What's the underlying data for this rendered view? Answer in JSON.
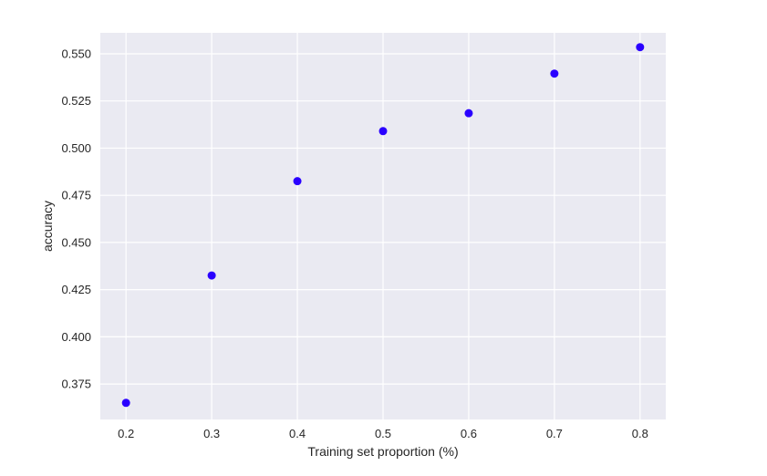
{
  "chart_data": {
    "type": "scatter",
    "title": "",
    "xlabel": "Training set proportion (%)",
    "ylabel": "accuracy",
    "x": [
      0.2,
      0.3,
      0.4,
      0.5,
      0.6,
      0.7,
      0.8
    ],
    "y": [
      0.365,
      0.4325,
      0.4825,
      0.509,
      0.5185,
      0.5395,
      0.5535
    ],
    "xlim": [
      0.17,
      0.83
    ],
    "ylim": [
      0.3562,
      0.5611
    ],
    "x_ticks": [
      0.2,
      0.3,
      0.4,
      0.5,
      0.6,
      0.7,
      0.8
    ],
    "x_tick_labels": [
      "0.2",
      "0.3",
      "0.4",
      "0.5",
      "0.6",
      "0.7",
      "0.8"
    ],
    "y_ticks": [
      0.375,
      0.4,
      0.425,
      0.45,
      0.475,
      0.5,
      0.525,
      0.55
    ],
    "y_tick_labels": [
      "0.375",
      "0.400",
      "0.425",
      "0.450",
      "0.475",
      "0.500",
      "0.525",
      "0.550"
    ],
    "grid": true,
    "colors": {
      "marker": "#2a00ff",
      "plot_background": "#eaeaf2",
      "grid": "#ffffff",
      "text": "#262626"
    }
  }
}
